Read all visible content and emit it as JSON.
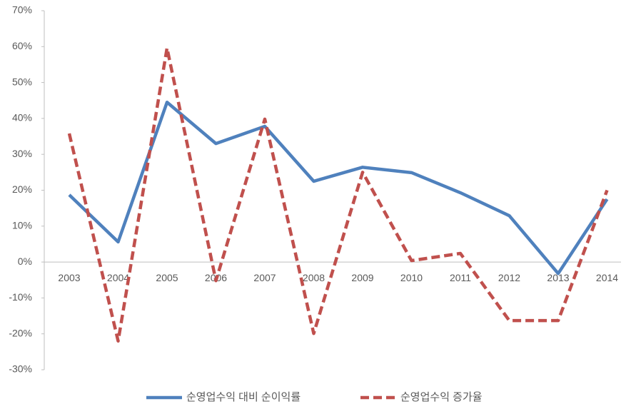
{
  "chart_data": {
    "type": "line",
    "categories": [
      "2003",
      "2004",
      "2005",
      "2006",
      "2007",
      "2008",
      "2009",
      "2010",
      "2011",
      "2012",
      "2013",
      "2014"
    ],
    "series": [
      {
        "name": "순영업수익 대비 순이익률",
        "color": "#4f81bd",
        "dash": false,
        "values": [
          18.7,
          5.6,
          44.5,
          33,
          37.8,
          22.5,
          26.4,
          24.9,
          19.3,
          12.9,
          -3.2,
          17.5
        ]
      },
      {
        "name": "순영업수익 증가율",
        "color": "#c0504d",
        "dash": true,
        "values": [
          35.8,
          -22,
          59.6,
          -5.2,
          39.8,
          -19.9,
          25,
          0.4,
          2.4,
          -16.3,
          -16.3,
          20
        ]
      }
    ],
    "ylim": [
      -30,
      70
    ],
    "yticks": [
      {
        "value": -30,
        "label": "-30%"
      },
      {
        "value": -20,
        "label": "-20%"
      },
      {
        "value": -10,
        "label": "-10%"
      },
      {
        "value": 0,
        "label": "0%"
      },
      {
        "value": 10,
        "label": "10%"
      },
      {
        "value": 20,
        "label": "20%"
      },
      {
        "value": 30,
        "label": "30%"
      },
      {
        "value": 40,
        "label": "40%"
      },
      {
        "value": 50,
        "label": "50%"
      },
      {
        "value": 60,
        "label": "60%"
      },
      {
        "value": 70,
        "label": "70%"
      }
    ],
    "grid": false,
    "legend": "bottom"
  }
}
